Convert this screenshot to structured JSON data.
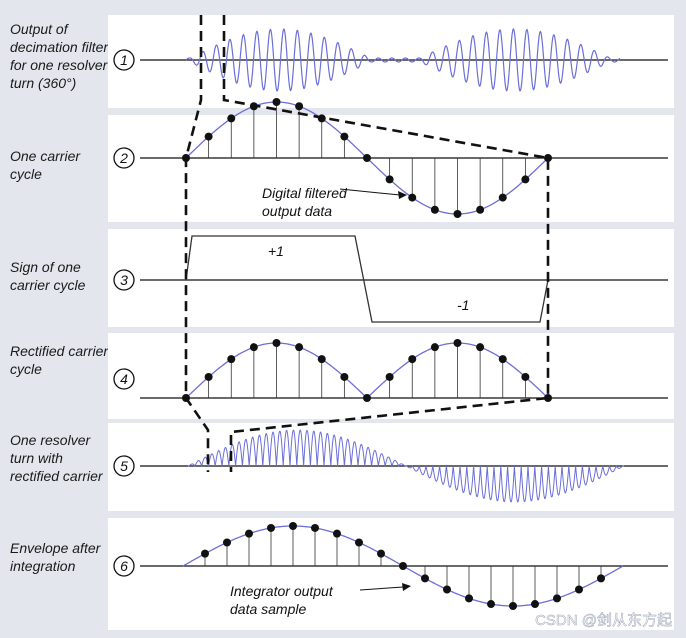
{
  "rows": [
    {
      "label": "Output of decimation filter for one resolver turn (360°)",
      "number": "1"
    },
    {
      "label": "One carrier cycle",
      "number": "2"
    },
    {
      "label": "Sign of one carrier cycle",
      "number": "3"
    },
    {
      "label": "Rectified carrier cycle",
      "number": "4"
    },
    {
      "label": "One resolver turn with rectified carrier",
      "number": "5"
    },
    {
      "label": "Envelope after integration",
      "number": "6"
    }
  ],
  "annotations": {
    "digital_filtered": [
      "Digital filtered",
      "output data"
    ],
    "plus_one": "+1",
    "minus_one": "-1",
    "integrator": [
      "Integrator output",
      "data sample"
    ]
  },
  "watermark": "CSDN @剑从东方起",
  "colors": {
    "wave": "#6b6fd8",
    "background": "#e3e6ec",
    "panel": "#ffffff"
  }
}
